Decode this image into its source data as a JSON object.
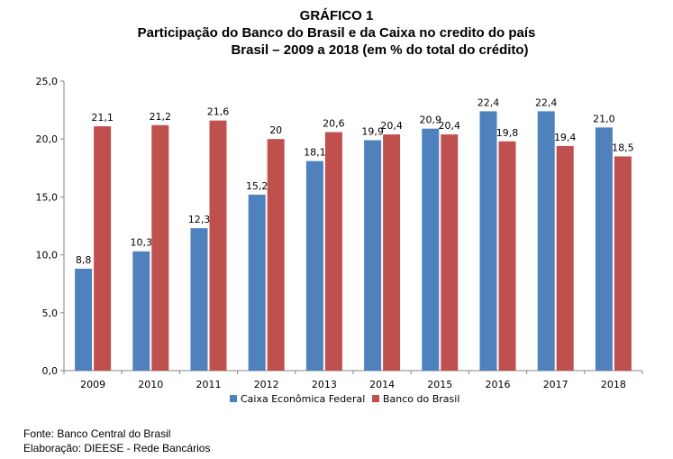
{
  "header": {
    "title": "GRÁFICO 1",
    "subtitle": "Participação do Banco do Brasil e da Caixa no credito do país",
    "subtitle2": "Brasil – 2009 a 2018 (em % do total do crédito)"
  },
  "chart_data": {
    "type": "bar",
    "title": "GRÁFICO 1",
    "categories": [
      "2009",
      "2010",
      "2011",
      "2012",
      "2013",
      "2014",
      "2015",
      "2016",
      "2017",
      "2018"
    ],
    "series": [
      {
        "name": "Caixa Econômica Federal",
        "color": "#4f81bd",
        "values": [
          8.8,
          10.3,
          12.3,
          15.2,
          18.1,
          19.9,
          20.9,
          22.4,
          22.4,
          21.0
        ],
        "labels": [
          "8,8",
          "10,3",
          "12,3",
          "15,2",
          "18,1",
          "19,9",
          "20,9",
          "22,4",
          "22,4",
          "21,0"
        ]
      },
      {
        "name": "Banco do Brasil",
        "color": "#c0504d",
        "values": [
          21.1,
          21.2,
          21.6,
          20.0,
          20.6,
          20.4,
          20.4,
          19.8,
          19.4,
          18.5
        ],
        "labels": [
          "21,1",
          "21,2",
          "21,6",
          "20",
          "20,6",
          "20,4",
          "20,4",
          "19,8",
          "19,4",
          "18,5"
        ]
      }
    ],
    "ylim": [
      0,
      25
    ],
    "yticks": [
      0,
      5,
      10,
      15,
      20,
      25
    ],
    "ytick_labels": [
      "0,0",
      "5,0",
      "10,0",
      "15,0",
      "20,0",
      "25,0"
    ],
    "grid": false,
    "legend_position": "bottom"
  },
  "footer": {
    "source": "Fonte: Banco Central do Brasil",
    "credit": "Elaboração: DIEESE - Rede Bancários"
  }
}
